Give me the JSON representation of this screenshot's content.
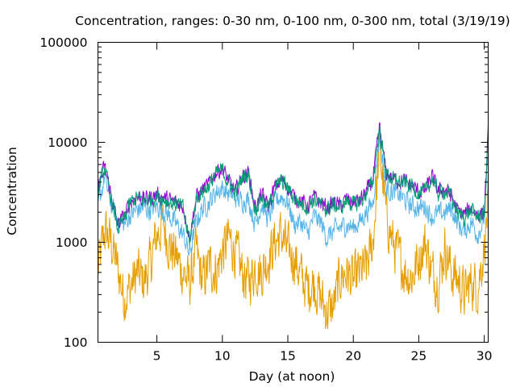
{
  "chart_data": {
    "type": "line",
    "title": "Concentration, ranges: 0-30 nm, 0-100 nm, 0-300 nm, total (3/19/19)",
    "xlabel": "Day (at noon)",
    "ylabel": "Concentration",
    "y_scale": "log",
    "xlim": [
      0.5,
      30.3
    ],
    "ylim": [
      100,
      100000
    ],
    "x_ticks": [
      5,
      10,
      15,
      20,
      25,
      30
    ],
    "x_tick_labels": [
      "5",
      "10",
      "15",
      "20",
      "25",
      "30"
    ],
    "y_ticks": [
      100,
      1000,
      10000,
      100000
    ],
    "y_tick_labels": [
      "100",
      "1000",
      "10000",
      "100000"
    ],
    "grid": false,
    "legend": "none",
    "series": [
      {
        "color": "#e69f00",
        "x": [
          0.5,
          1,
          1.5,
          2,
          2.5,
          3,
          3.5,
          4,
          4.5,
          5,
          5.5,
          6,
          6.5,
          7,
          7.5,
          8,
          8.5,
          9,
          9.5,
          10,
          10.5,
          11,
          11.5,
          12,
          12.5,
          13,
          13.5,
          14,
          14.5,
          15,
          15.5,
          16,
          16.5,
          17,
          17.5,
          18,
          18.5,
          19,
          19.5,
          20,
          20.5,
          21,
          21.5,
          22,
          22.5,
          23,
          23.5,
          24,
          24.5,
          25,
          25.5,
          26,
          26.5,
          27,
          27.5,
          28,
          28.5,
          29,
          29.5,
          30,
          30.3
        ],
        "y": [
          520,
          1300,
          1000,
          550,
          280,
          360,
          500,
          400,
          600,
          1200,
          1500,
          900,
          700,
          500,
          380,
          800,
          400,
          600,
          500,
          800,
          1100,
          800,
          500,
          400,
          560,
          500,
          700,
          1000,
          1200,
          800,
          700,
          450,
          350,
          400,
          280,
          200,
          230,
          450,
          500,
          400,
          500,
          550,
          1000,
          9000,
          1900,
          1000,
          700,
          500,
          450,
          700,
          1000,
          500,
          400,
          900,
          500,
          420,
          300,
          400,
          350,
          900,
          2500
        ]
      },
      {
        "color": "#56b4e9",
        "x": [
          0.5,
          1,
          1.5,
          2,
          2.5,
          3,
          3.5,
          4,
          4.5,
          5,
          5.5,
          6,
          6.5,
          7,
          7.5,
          8,
          8.5,
          9,
          9.5,
          10,
          10.5,
          11,
          11.5,
          12,
          12.5,
          13,
          13.5,
          14,
          14.5,
          15,
          15.5,
          16,
          16.5,
          17,
          17.5,
          18,
          18.5,
          19,
          19.5,
          20,
          20.5,
          21,
          21.5,
          22,
          22.5,
          23,
          23.5,
          24,
          24.5,
          25,
          25.5,
          26,
          26.5,
          27,
          27.5,
          28,
          28.5,
          29,
          29.5,
          30,
          30.3
        ],
        "y": [
          2200,
          4500,
          2400,
          1600,
          1500,
          1900,
          2100,
          2200,
          2100,
          2300,
          2100,
          1800,
          1500,
          1200,
          750,
          1600,
          2200,
          2500,
          3200,
          3500,
          3000,
          2800,
          2600,
          2700,
          1500,
          2400,
          1700,
          2500,
          2900,
          2500,
          1500,
          1600,
          1200,
          1800,
          1600,
          1100,
          1300,
          1400,
          1500,
          1400,
          1600,
          2000,
          2500,
          12000,
          3500,
          3200,
          3000,
          2600,
          2300,
          2200,
          2300,
          1800,
          1900,
          2000,
          2200,
          1500,
          1300,
          1600,
          1200,
          1700,
          7000
        ]
      },
      {
        "color": "#9400d3",
        "x": [
          0.5,
          1,
          1.5,
          2,
          2.5,
          3,
          3.5,
          4,
          4.5,
          5,
          5.5,
          6,
          6.5,
          7,
          7.5,
          8,
          8.5,
          9,
          9.5,
          10,
          10.5,
          11,
          11.5,
          12,
          12.5,
          13,
          13.5,
          14,
          14.5,
          15,
          15.5,
          16,
          16.5,
          17,
          17.5,
          18,
          18.5,
          19,
          19.5,
          20,
          20.5,
          21,
          21.5,
          22,
          22.5,
          23,
          23.5,
          24,
          24.5,
          25,
          25.5,
          26,
          26.5,
          27,
          27.5,
          28,
          28.5,
          29,
          29.5,
          30,
          30.3
        ],
        "y": [
          3500,
          5800,
          3000,
          1500,
          1800,
          2600,
          2900,
          2700,
          2800,
          3000,
          2800,
          2600,
          2500,
          2300,
          1100,
          2800,
          3400,
          3800,
          5000,
          5500,
          4000,
          3200,
          4500,
          5000,
          2200,
          3000,
          2300,
          3500,
          4200,
          3600,
          2800,
          2600,
          2300,
          2800,
          2500,
          2200,
          2500,
          2300,
          2700,
          2500,
          2600,
          3200,
          4200,
          14000,
          5000,
          4300,
          4100,
          4000,
          3700,
          3200,
          3300,
          4500,
          3200,
          3400,
          2900,
          2000,
          1900,
          2200,
          1900,
          2000,
          12000
        ]
      },
      {
        "color": "#009e73",
        "x": [
          0.5,
          1,
          1.5,
          2,
          2.5,
          3,
          3.5,
          4,
          4.5,
          5,
          5.5,
          6,
          6.5,
          7,
          7.5,
          8,
          8.5,
          9,
          9.5,
          10,
          10.5,
          11,
          11.5,
          12,
          12.5,
          13,
          13.5,
          14,
          14.5,
          15,
          15.5,
          16,
          16.5,
          17,
          17.5,
          18,
          18.5,
          19,
          19.5,
          20,
          20.5,
          21,
          21.5,
          22,
          22.5,
          23,
          23.5,
          24,
          24.5,
          25,
          25.5,
          26,
          26.5,
          27,
          27.5,
          28,
          28.5,
          29,
          29.5,
          30,
          30.3
        ],
        "y": [
          3300,
          5500,
          2800,
          1400,
          1700,
          2500,
          2800,
          2600,
          2700,
          2900,
          2700,
          2500,
          2400,
          2200,
          1000,
          2700,
          3300,
          3700,
          4800,
          5300,
          3900,
          3100,
          4400,
          4800,
          2100,
          2900,
          2200,
          3400,
          4100,
          3500,
          2700,
          2500,
          2200,
          2700,
          2400,
          2100,
          2400,
          2200,
          2600,
          2400,
          2500,
          3100,
          4100,
          13500,
          4900,
          4200,
          4000,
          3900,
          3600,
          3100,
          3200,
          4400,
          3100,
          3300,
          2800,
          1900,
          1800,
          2100,
          1800,
          1900,
          11500
        ]
      }
    ]
  }
}
